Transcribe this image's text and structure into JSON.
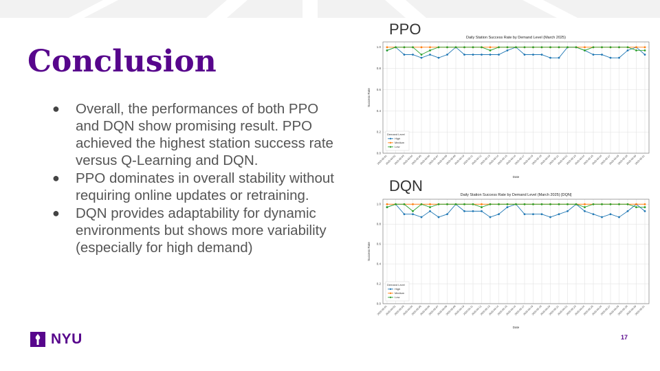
{
  "slide": {
    "title": "Conclusion",
    "bullets": [
      "Overall, the performances of  both PPO and DQN show promising result. PPO achieved the highest station success rate versus Q-Learning and DQN.",
      "PPO dominates in overall stability without requiring online updates or retraining.",
      "DQN provides adaptability for dynamic environments but shows more variability (especially for high demand)"
    ],
    "logo_text": "NYU",
    "page_number": "17",
    "brand_color": "#57068c"
  },
  "chart_labels": [
    "PPO",
    "DQN"
  ],
  "chart_data": [
    {
      "type": "line",
      "title": "Daily Station Success Rate by Demand Level (March 2025)",
      "xlabel": "Date",
      "ylabel": "Success Rate",
      "ylim": [
        0,
        1.05
      ],
      "yticks": [
        0.0,
        0.2,
        0.4,
        0.6,
        0.8,
        1.0
      ],
      "grid": true,
      "legend_title": "Demand Level",
      "legend_position": "lower-left",
      "x": [
        "2025-03-01",
        "2025-03-02",
        "2025-03-03",
        "2025-03-04",
        "2025-03-05",
        "2025-03-06",
        "2025-03-07",
        "2025-03-08",
        "2025-03-09",
        "2025-03-10",
        "2025-03-11",
        "2025-03-12",
        "2025-03-13",
        "2025-03-14",
        "2025-03-15",
        "2025-03-16",
        "2025-03-17",
        "2025-03-18",
        "2025-03-19",
        "2025-03-20",
        "2025-03-21",
        "2025-03-22",
        "2025-03-23",
        "2025-03-24",
        "2025-03-25",
        "2025-03-26",
        "2025-03-27",
        "2025-03-28",
        "2025-03-29",
        "2025-03-30",
        "2025-03-31"
      ],
      "series": [
        {
          "name": "High",
          "color": "#1f77b4",
          "values": [
            0.97,
            1.0,
            0.93,
            0.93,
            0.9,
            0.93,
            0.9,
            0.93,
            1.0,
            0.93,
            0.93,
            0.93,
            0.93,
            0.93,
            0.97,
            1.0,
            0.93,
            0.93,
            0.93,
            0.9,
            0.9,
            1.0,
            1.0,
            0.97,
            0.93,
            0.93,
            0.9,
            0.9,
            0.97,
            1.0,
            0.93
          ]
        },
        {
          "name": "Medium",
          "color": "#ff7f0e",
          "values": [
            1.0,
            1.0,
            1.0,
            1.0,
            1.0,
            1.0,
            1.0,
            1.0,
            1.0,
            1.0,
            1.0,
            1.0,
            1.0,
            1.0,
            1.0,
            1.0,
            1.0,
            1.0,
            1.0,
            1.0,
            1.0,
            1.0,
            1.0,
            1.0,
            1.0,
            1.0,
            1.0,
            1.0,
            1.0,
            1.0,
            1.0
          ]
        },
        {
          "name": "Low",
          "color": "#2ca02c",
          "values": [
            0.97,
            1.0,
            1.0,
            1.0,
            0.93,
            0.97,
            1.0,
            1.0,
            1.0,
            1.0,
            1.0,
            1.0,
            0.97,
            1.0,
            1.0,
            1.0,
            1.0,
            1.0,
            1.0,
            1.0,
            1.0,
            1.0,
            1.0,
            0.97,
            1.0,
            1.0,
            1.0,
            1.0,
            1.0,
            0.97,
            0.97
          ]
        }
      ]
    },
    {
      "type": "line",
      "title": "Daily Station Success Rate by Demand Level (March 2025) [DQN]",
      "xlabel": "Date",
      "ylabel": "Success Rate",
      "ylim": [
        0,
        1.05
      ],
      "yticks": [
        0.0,
        0.2,
        0.4,
        0.6,
        0.8,
        1.0
      ],
      "grid": true,
      "legend_title": "Demand Level",
      "legend_position": "lower-left",
      "x": [
        "2025-03-01",
        "2025-03-02",
        "2025-03-03",
        "2025-03-04",
        "2025-03-05",
        "2025-03-06",
        "2025-03-07",
        "2025-03-08",
        "2025-03-09",
        "2025-03-10",
        "2025-03-11",
        "2025-03-12",
        "2025-03-13",
        "2025-03-14",
        "2025-03-15",
        "2025-03-16",
        "2025-03-17",
        "2025-03-18",
        "2025-03-19",
        "2025-03-20",
        "2025-03-21",
        "2025-03-22",
        "2025-03-23",
        "2025-03-24",
        "2025-03-25",
        "2025-03-26",
        "2025-03-27",
        "2025-03-28",
        "2025-03-29",
        "2025-03-30",
        "2025-03-31"
      ],
      "series": [
        {
          "name": "High",
          "color": "#1f77b4",
          "values": [
            0.97,
            1.0,
            0.9,
            0.9,
            0.87,
            0.93,
            0.87,
            0.9,
            1.0,
            0.93,
            0.93,
            0.93,
            0.87,
            0.9,
            0.97,
            1.0,
            0.9,
            0.9,
            0.9,
            0.87,
            0.9,
            0.93,
            1.0,
            0.93,
            0.9,
            0.87,
            0.9,
            0.87,
            0.93,
            1.0,
            0.93
          ]
        },
        {
          "name": "Medium",
          "color": "#ff7f0e",
          "values": [
            1.0,
            1.0,
            1.0,
            1.0,
            1.0,
            1.0,
            1.0,
            1.0,
            1.0,
            1.0,
            1.0,
            1.0,
            1.0,
            1.0,
            1.0,
            1.0,
            1.0,
            1.0,
            1.0,
            1.0,
            1.0,
            1.0,
            1.0,
            1.0,
            1.0,
            1.0,
            1.0,
            1.0,
            1.0,
            1.0,
            1.0
          ]
        },
        {
          "name": "Low",
          "color": "#2ca02c",
          "values": [
            0.97,
            1.0,
            1.0,
            0.93,
            1.0,
            0.97,
            1.0,
            1.0,
            1.0,
            1.0,
            1.0,
            0.97,
            1.0,
            1.0,
            1.0,
            1.0,
            1.0,
            1.0,
            1.0,
            1.0,
            1.0,
            1.0,
            1.0,
            0.97,
            1.0,
            1.0,
            1.0,
            1.0,
            1.0,
            0.97,
            0.97
          ]
        }
      ]
    }
  ]
}
